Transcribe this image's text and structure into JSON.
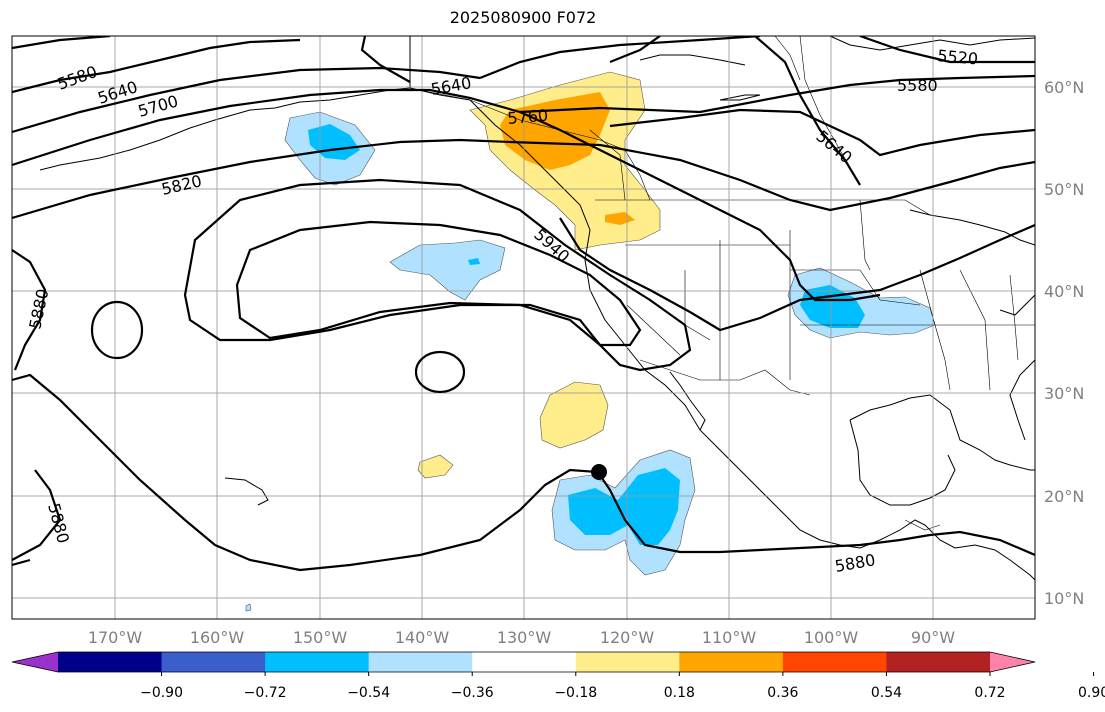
{
  "title": "2025080900 F072",
  "longitude_labels": [
    "170°W",
    "160°W",
    "150°W",
    "140°W",
    "130°W",
    "120°W",
    "110°W",
    "100°W",
    "90°W"
  ],
  "latitude_labels": [
    "60°N",
    "50°N",
    "40°N",
    "30°N",
    "20°N",
    "10°N"
  ],
  "contour_labels": [
    "5520",
    "5580",
    "5580",
    "5640",
    "5640",
    "5640",
    "5700",
    "5760",
    "5820",
    "5880",
    "5880",
    "5880",
    "5940"
  ],
  "colorbar": {
    "ticks": [
      "−0.90",
      "−0.72",
      "−0.54",
      "−0.36",
      "−0.18",
      "0.18",
      "0.36",
      "0.54",
      "0.72",
      "0.90"
    ],
    "colors": [
      "#9932cc",
      "#00008b",
      "#3a5fcd",
      "#00bfff",
      "#b0e2ff",
      "#ffffff",
      "#ffec8b",
      "#ffa500",
      "#ff4500",
      "#b22222",
      "#ff82ab"
    ]
  },
  "marker": {
    "label": "storm-position-marker"
  }
}
